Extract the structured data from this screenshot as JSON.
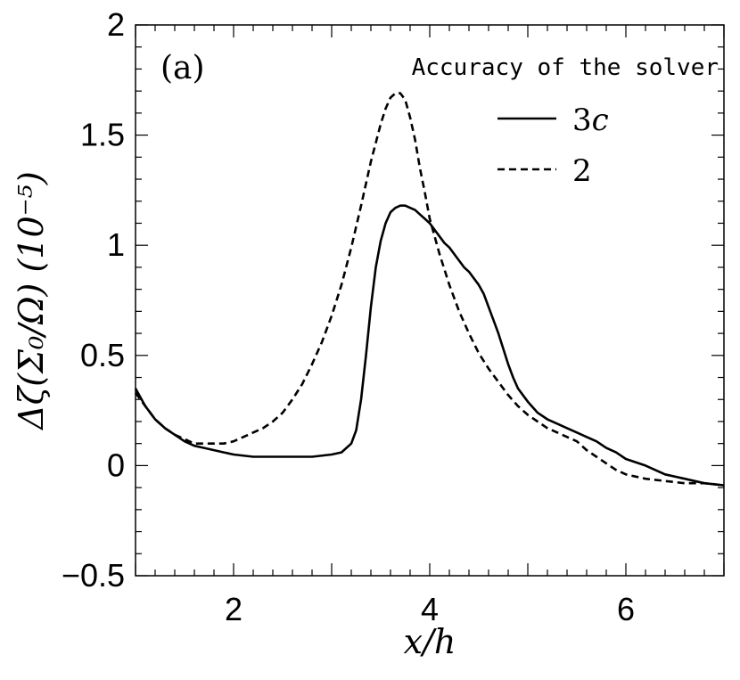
{
  "chart_data": {
    "type": "line",
    "panel_label": "(a)",
    "title": "Accuracy of the solver",
    "xlabel": "x/h",
    "ylabel": "Δζ(Σ₀/Ω) (10⁻⁵)",
    "xlim": [
      1,
      7
    ],
    "ylim": [
      -0.5,
      2
    ],
    "xticks": [
      2,
      4,
      6
    ],
    "xtick_labels": [
      "2",
      "4",
      "6"
    ],
    "yticks": [
      -0.5,
      0,
      0.5,
      1,
      1.5,
      2
    ],
    "ytick_labels": [
      "−0.5",
      "0",
      "0.5",
      "1",
      "1.5",
      "2"
    ],
    "legend_position": "top-right",
    "series": [
      {
        "name": "3c",
        "style": "solid",
        "color": "#000000",
        "x": [
          1.0,
          1.1,
          1.2,
          1.3,
          1.4,
          1.5,
          1.6,
          1.7,
          1.8,
          1.9,
          2.0,
          2.2,
          2.4,
          2.6,
          2.8,
          3.0,
          3.1,
          3.2,
          3.25,
          3.3,
          3.35,
          3.4,
          3.45,
          3.5,
          3.55,
          3.6,
          3.65,
          3.7,
          3.75,
          3.8,
          3.85,
          3.9,
          3.95,
          4.0,
          4.05,
          4.1,
          4.15,
          4.2,
          4.25,
          4.3,
          4.35,
          4.4,
          4.45,
          4.5,
          4.55,
          4.6,
          4.65,
          4.7,
          4.75,
          4.8,
          4.85,
          4.9,
          4.95,
          5.0,
          5.1,
          5.2,
          5.3,
          5.4,
          5.5,
          5.6,
          5.7,
          5.8,
          5.9,
          6.0,
          6.2,
          6.4,
          6.6,
          6.8,
          7.0
        ],
        "y": [
          0.35,
          0.27,
          0.21,
          0.17,
          0.14,
          0.11,
          0.09,
          0.08,
          0.07,
          0.06,
          0.05,
          0.04,
          0.04,
          0.04,
          0.04,
          0.05,
          0.06,
          0.1,
          0.16,
          0.3,
          0.5,
          0.72,
          0.9,
          1.02,
          1.1,
          1.15,
          1.17,
          1.18,
          1.18,
          1.17,
          1.16,
          1.14,
          1.12,
          1.1,
          1.07,
          1.04,
          1.01,
          0.99,
          0.96,
          0.93,
          0.9,
          0.88,
          0.85,
          0.82,
          0.78,
          0.72,
          0.66,
          0.6,
          0.53,
          0.46,
          0.4,
          0.35,
          0.32,
          0.29,
          0.24,
          0.21,
          0.19,
          0.17,
          0.15,
          0.13,
          0.11,
          0.08,
          0.06,
          0.03,
          0.0,
          -0.04,
          -0.06,
          -0.08,
          -0.09
        ]
      },
      {
        "name": "2",
        "style": "dashed",
        "color": "#000000",
        "x": [
          1.0,
          1.1,
          1.2,
          1.3,
          1.4,
          1.5,
          1.6,
          1.7,
          1.8,
          1.9,
          2.0,
          2.1,
          2.2,
          2.3,
          2.4,
          2.5,
          2.6,
          2.7,
          2.8,
          2.9,
          3.0,
          3.1,
          3.2,
          3.3,
          3.4,
          3.5,
          3.55,
          3.6,
          3.65,
          3.7,
          3.75,
          3.8,
          3.85,
          3.9,
          3.95,
          4.0,
          4.05,
          4.1,
          4.2,
          4.3,
          4.4,
          4.5,
          4.6,
          4.7,
          4.8,
          4.9,
          5.0,
          5.1,
          5.2,
          5.3,
          5.4,
          5.5,
          5.6,
          5.7,
          5.8,
          5.9,
          6.0,
          6.2,
          6.4,
          6.6,
          6.8,
          7.0
        ],
        "y": [
          0.33,
          0.27,
          0.21,
          0.17,
          0.14,
          0.12,
          0.1,
          0.1,
          0.1,
          0.1,
          0.11,
          0.13,
          0.15,
          0.17,
          0.2,
          0.24,
          0.3,
          0.37,
          0.46,
          0.56,
          0.68,
          0.82,
          0.99,
          1.18,
          1.38,
          1.55,
          1.62,
          1.67,
          1.69,
          1.69,
          1.66,
          1.58,
          1.48,
          1.35,
          1.24,
          1.12,
          1.04,
          0.96,
          0.82,
          0.7,
          0.6,
          0.51,
          0.44,
          0.38,
          0.32,
          0.27,
          0.23,
          0.2,
          0.17,
          0.15,
          0.13,
          0.11,
          0.07,
          0.04,
          0.01,
          -0.02,
          -0.04,
          -0.06,
          -0.07,
          -0.08,
          -0.08,
          -0.09
        ]
      }
    ]
  }
}
